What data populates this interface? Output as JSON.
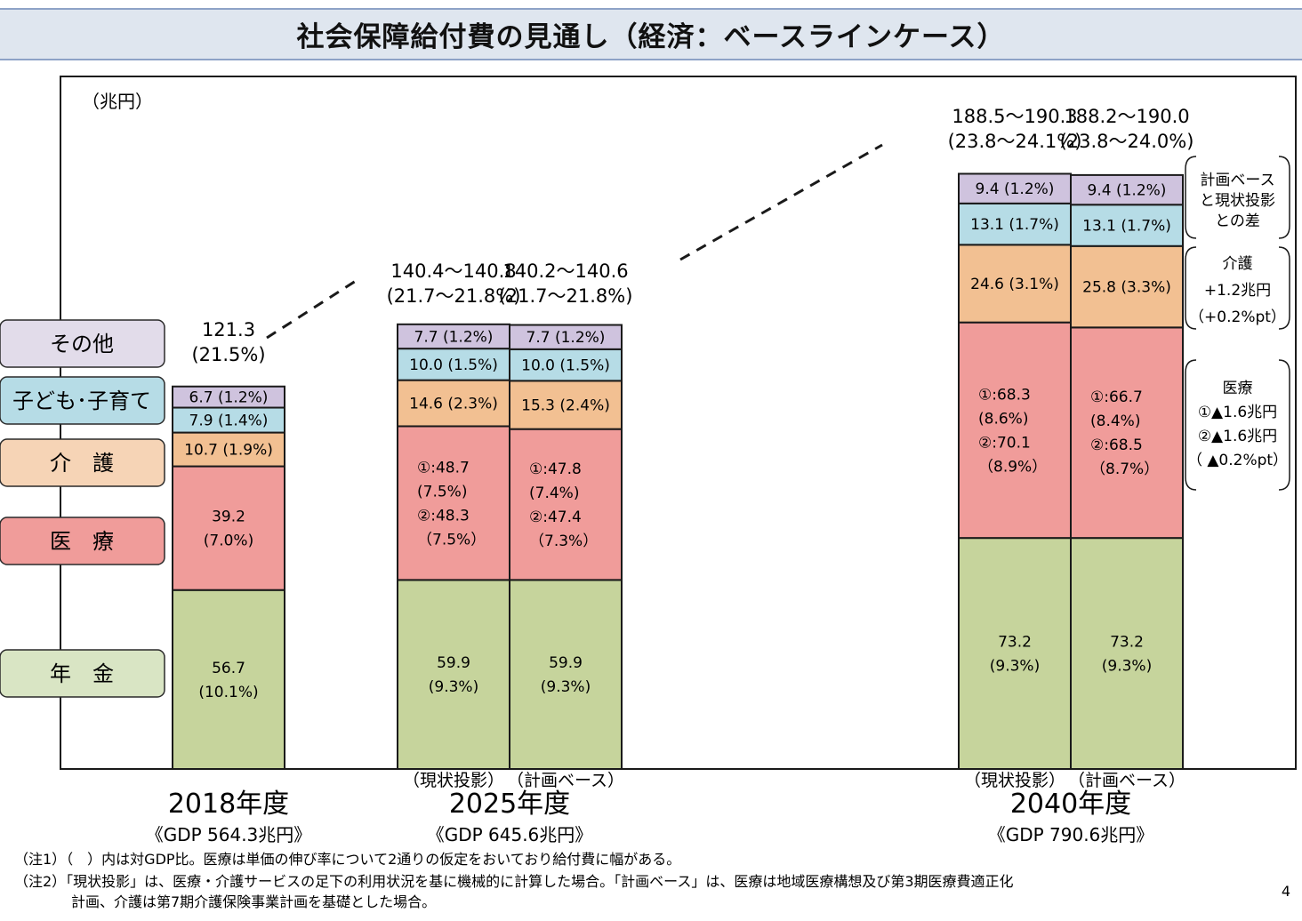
{
  "title": "社会保障給付費の見通し（経済：ベースラインケース）",
  "unit_label": "（兆円）",
  "page_number": "4",
  "colors": {
    "pension": "#c6d49c",
    "medical": "#f09c9a",
    "care": "#f2c092",
    "child": "#b6dce6",
    "other": "#cfc3de",
    "legend_pension": "#d9e5c4",
    "legend_medical": "#f09c9a",
    "legend_care": "#f6d4b6",
    "legend_child": "#b6dce6",
    "legend_other": "#e2dcea",
    "title_bg": "#dfe6ef",
    "border": "#1a1a1a"
  },
  "legend": [
    {
      "key": "other",
      "label": "その他"
    },
    {
      "key": "child",
      "label": "子ども･子育て"
    },
    {
      "key": "care",
      "label": "介　護"
    },
    {
      "key": "medical",
      "label": "医　療"
    },
    {
      "key": "pension",
      "label": "年　金"
    }
  ],
  "chart_data": {
    "type": "bar",
    "stacked": true,
    "title": "社会保障給付費の見通し（経済：ベースラインケース）",
    "ylabel": "兆円",
    "categories": [
      "2018年度",
      "2025年度（現状投影）",
      "2025年度（計画ベース）",
      "2040年度（現状投影）",
      "2040年度（計画ベース）"
    ],
    "series": [
      {
        "name": "年金",
        "key": "pension",
        "values": [
          56.7,
          59.9,
          59.9,
          73.2,
          73.2
        ],
        "labels": [
          [
            "56.7",
            "(10.1%)"
          ],
          [
            "59.9",
            "(9.3%)"
          ],
          [
            "59.9",
            "(9.3%)"
          ],
          [
            "73.2",
            "(9.3%)"
          ],
          [
            "73.2",
            "(9.3%)"
          ]
        ]
      },
      {
        "name": "医療",
        "key": "medical",
        "values": [
          39.2,
          48.7,
          47.8,
          68.3,
          66.7
        ],
        "labels": [
          [
            "39.2",
            "(7.0%)"
          ],
          [
            "①:48.7",
            "  (7.5%)",
            "②:48.3",
            "  （7.5%）"
          ],
          [
            "①:47.8",
            "  (7.4%)",
            "②:47.4",
            "  （7.3%）"
          ],
          [
            "①:68.3",
            "  (8.6%)",
            "②:70.1",
            "  （8.9%）"
          ],
          [
            "①:66.7",
            "  (8.4%)",
            "②:68.5",
            "  （8.7%）"
          ]
        ]
      },
      {
        "name": "介護",
        "key": "care",
        "values": [
          10.7,
          14.6,
          15.3,
          24.6,
          25.8
        ],
        "labels": [
          [
            "10.7 (1.9%)"
          ],
          [
            "14.6 (2.3%)"
          ],
          [
            "15.3 (2.4%)"
          ],
          [
            "24.6 (3.1%)"
          ],
          [
            "25.8 (3.3%)"
          ]
        ]
      },
      {
        "name": "子ども・子育て",
        "key": "child",
        "values": [
          7.9,
          10.0,
          10.0,
          13.1,
          13.1
        ],
        "labels": [
          [
            "7.9 (1.4%)"
          ],
          [
            "10.0 (1.5%)"
          ],
          [
            "10.0 (1.5%)"
          ],
          [
            "13.1 (1.7%)"
          ],
          [
            "13.1 (1.7%)"
          ]
        ]
      },
      {
        "name": "その他",
        "key": "other",
        "values": [
          6.7,
          7.7,
          7.7,
          9.4,
          9.4
        ],
        "labels": [
          [
            "6.7 (1.2%)"
          ],
          [
            "7.7 (1.2%)"
          ],
          [
            "7.7 (1.2%)"
          ],
          [
            "9.4 (1.2%)"
          ],
          [
            "9.4 (1.2%)"
          ]
        ]
      }
    ],
    "totals": [
      [
        "121.3",
        "(21.5%)"
      ],
      [
        "140.4～140.8",
        "(21.7～21.8%)"
      ],
      [
        "140.2～140.6",
        "(21.7～21.8%)"
      ],
      [
        "188.5～190.3",
        "(23.8～24.1%)"
      ],
      [
        "188.2～190.0",
        "(23.8～24.0%)"
      ]
    ],
    "sub_labels": [
      "",
      "（現状投影）",
      "（計画ベース）",
      "（現状投影）",
      "（計画ベース）"
    ],
    "year_groups": [
      {
        "year": "2018年度",
        "gdp": "《GDP 564.3兆円》"
      },
      {
        "year": "2025年度",
        "gdp": "《GDP 645.6兆円》"
      },
      {
        "year": "2040年度",
        "gdp": "《GDP 790.6兆円》"
      }
    ],
    "grid": false,
    "legend_position": "left"
  },
  "side_notes": [
    {
      "lines": [
        "計画ベース",
        "と現状投影",
        "との差"
      ]
    },
    {
      "lines": [
        "介護",
        "+1.2兆円",
        "（+0.2%pt）"
      ]
    },
    {
      "lines": [
        "医療",
        "①▲1.6兆円",
        "②▲1.6兆円",
        "（ ▲0.2%pt）"
      ]
    }
  ],
  "notes": [
    "（注1）（　）内は対GDP比。医療は単価の伸び率について2通りの仮定をおいており給付費に幅がある。",
    "（注2）「現状投影」は、医療・介護サービスの足下の利用状況を基に機械的に計算した場合。「計画ベース」は、医療は地域医療構想及び第3期医療費適正化",
    "　　　　計画、介護は第7期介護保険事業計画を基礎とした場合。"
  ]
}
